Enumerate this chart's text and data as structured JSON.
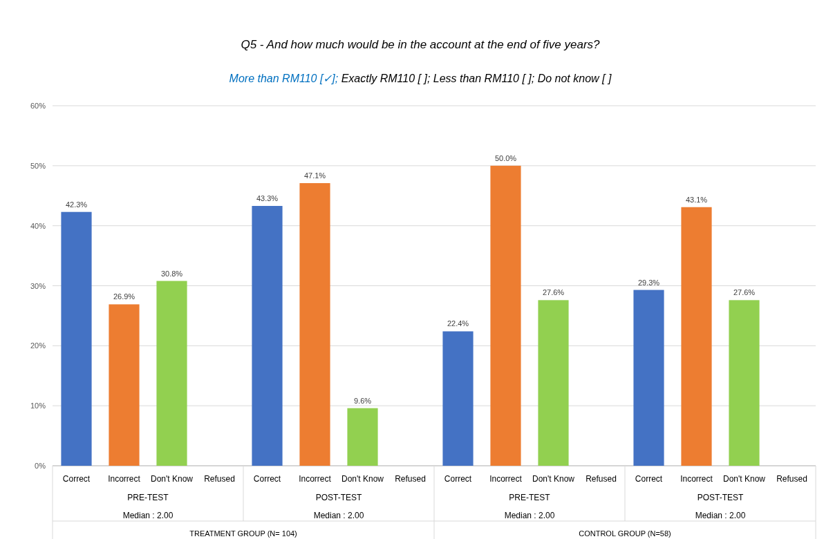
{
  "chart_data": {
    "type": "bar",
    "title": "Q5 - And how much would be in the account at the end of five years?",
    "subtitle": "More than RM110 [✓]; Exactly RM110 [  ]; Less than RM110 [  ]; Do not know [  ]",
    "categories": [
      "Correct",
      "Incorrect",
      "Don't Know",
      "Refused",
      "Correct",
      "Incorrect",
      "Don't Know",
      "Refused",
      "Correct",
      "Incorrect",
      "Don't Know",
      "Refused",
      "Correct",
      "Incorrect",
      "Don't Know",
      "Refused"
    ],
    "values": [
      42.3,
      26.9,
      30.8,
      null,
      43.3,
      47.1,
      9.6,
      null,
      22.4,
      50.0,
      27.6,
      null,
      29.3,
      43.1,
      27.6,
      null
    ],
    "value_labels": [
      "42.3%",
      "26.9%",
      "30.8%",
      null,
      "43.3%",
      "47.1%",
      "9.6%",
      null,
      "22.4%",
      "50.0%",
      "27.6%",
      null,
      "29.3%",
      "43.1%",
      "27.6%",
      null
    ],
    "colors": [
      "#4472c4",
      "#ed7d31",
      "#92d050",
      null,
      "#4472c4",
      "#ed7d31",
      "#92d050",
      null,
      "#4472c4",
      "#ed7d31",
      "#92d050",
      null,
      "#4472c4",
      "#ed7d31",
      "#92d050",
      null
    ],
    "ylim": [
      0,
      60
    ],
    "yticks": [
      {
        "value": 0,
        "label": "0%"
      },
      {
        "value": 10,
        "label": "10%"
      },
      {
        "value": 20,
        "label": "20%"
      },
      {
        "value": 30,
        "label": "30%"
      },
      {
        "value": 40,
        "label": "40%"
      },
      {
        "value": 50,
        "label": "50%"
      },
      {
        "value": 60,
        "label": "60%"
      }
    ],
    "grid": "y",
    "annotations": [
      "PRE-TEST",
      "Median : 2.00",
      "POST-TEST",
      "Median : 2.00",
      "PRE-TEST",
      "Median : 2.00",
      "POST-TEST",
      "Median : 2.00",
      "TREATMENT GROUP (N= 104)",
      "CONTROL GROUP (N=58)"
    ]
  }
}
